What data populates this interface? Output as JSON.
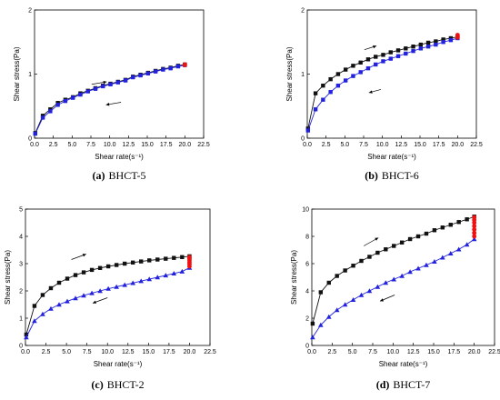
{
  "chart_data": [
    {
      "type": "line",
      "panel": "a",
      "caption_letter": "(a)",
      "caption_text": "BHCT-5",
      "xlabel": "Shear rate(s⁻¹)",
      "ylabel": "Shear stress(Pa)",
      "xlim": [
        0,
        22.5
      ],
      "ylim": [
        0,
        2
      ],
      "x_ticks": [
        0.0,
        2.5,
        5.0,
        7.5,
        10.0,
        12.5,
        15.0,
        17.5,
        20.0,
        22.5
      ],
      "y_ticks": [
        0,
        1,
        2
      ],
      "series": [
        {
          "direction": "up",
          "marker": "square",
          "color": "#111111",
          "x": [
            0.1,
            1.1,
            2.1,
            3.1,
            4.1,
            5.1,
            6.1,
            7.1,
            8.1,
            9.1,
            10.1,
            11.1,
            12.1,
            13.1,
            14.1,
            15.1,
            16.1,
            17.1,
            18.1,
            19.1,
            20.0
          ],
          "y": [
            0.08,
            0.35,
            0.45,
            0.55,
            0.6,
            0.64,
            0.7,
            0.74,
            0.78,
            0.82,
            0.85,
            0.88,
            0.91,
            0.96,
            0.99,
            1.02,
            1.05,
            1.08,
            1.1,
            1.13,
            1.15
          ]
        },
        {
          "direction": "down",
          "marker": "square",
          "color": "#2222dd",
          "x": [
            0.1,
            1.1,
            2.1,
            3.1,
            4.1,
            5.1,
            6.1,
            7.1,
            8.1,
            9.1,
            10.1,
            11.1,
            12.1,
            13.1,
            14.1,
            15.1,
            16.1,
            17.1,
            18.1,
            19.1,
            20.0
          ],
          "y": [
            0.07,
            0.32,
            0.42,
            0.52,
            0.58,
            0.63,
            0.68,
            0.73,
            0.77,
            0.81,
            0.84,
            0.87,
            0.9,
            0.95,
            0.98,
            1.01,
            1.04,
            1.07,
            1.09,
            1.12,
            1.14
          ]
        },
        {
          "direction": "hold",
          "marker": "circle",
          "color": "#ee1111",
          "x": [
            20.0,
            20.0
          ],
          "y": [
            1.14,
            1.15
          ]
        }
      ],
      "arrows": [
        {
          "direction": "up",
          "from": [
            7.6,
            0.84
          ],
          "to": [
            9.6,
            0.88
          ]
        },
        {
          "direction": "down",
          "from": [
            11.5,
            0.56
          ],
          "to": [
            9.5,
            0.52
          ]
        }
      ]
    },
    {
      "type": "line",
      "panel": "b",
      "caption_letter": "(b)",
      "caption_text": "BHCT-6",
      "xlabel": "Shear rate(s⁻¹)",
      "ylabel": "Shear stress(Pa)",
      "xlim": [
        0,
        22.5
      ],
      "ylim": [
        0,
        2
      ],
      "x_ticks": [
        0.0,
        2.5,
        5.0,
        7.5,
        10.0,
        12.5,
        15.0,
        17.5,
        20.0,
        22.5
      ],
      "y_ticks": [
        0,
        1,
        2
      ],
      "series": [
        {
          "direction": "up",
          "marker": "square",
          "color": "#111111",
          "x": [
            0.1,
            1.1,
            2.1,
            3.1,
            4.1,
            5.1,
            6.1,
            7.1,
            8.1,
            9.1,
            10.1,
            11.1,
            12.1,
            13.1,
            14.1,
            15.1,
            16.1,
            17.1,
            18.1,
            19.1,
            20.0
          ],
          "y": [
            0.15,
            0.7,
            0.82,
            0.92,
            1.0,
            1.07,
            1.13,
            1.18,
            1.23,
            1.27,
            1.3,
            1.34,
            1.37,
            1.4,
            1.43,
            1.46,
            1.49,
            1.51,
            1.54,
            1.56,
            1.58
          ]
        },
        {
          "direction": "down",
          "marker": "square",
          "color": "#2222dd",
          "x": [
            0.1,
            1.1,
            2.1,
            3.1,
            4.1,
            5.1,
            6.1,
            7.1,
            8.1,
            9.1,
            10.1,
            11.1,
            12.1,
            13.1,
            14.1,
            15.1,
            16.1,
            17.1,
            18.1,
            19.1,
            20.0
          ],
          "y": [
            0.12,
            0.45,
            0.6,
            0.72,
            0.82,
            0.9,
            0.97,
            1.03,
            1.09,
            1.15,
            1.2,
            1.24,
            1.28,
            1.32,
            1.36,
            1.4,
            1.43,
            1.46,
            1.5,
            1.53,
            1.56
          ]
        },
        {
          "direction": "hold",
          "marker": "circle",
          "color": "#ee1111",
          "x": [
            20.0,
            20.0,
            20.0
          ],
          "y": [
            1.57,
            1.59,
            1.61
          ]
        }
      ],
      "arrows": [
        {
          "direction": "up",
          "from": [
            7.6,
            1.38
          ],
          "to": [
            9.2,
            1.44
          ]
        },
        {
          "direction": "down",
          "from": [
            9.8,
            0.76
          ],
          "to": [
            8.2,
            0.71
          ]
        }
      ]
    },
    {
      "type": "line",
      "panel": "c",
      "caption_letter": "(c)",
      "caption_text": "BHCT-2",
      "xlabel": "Shear rate(s⁻¹)",
      "ylabel": "Shear stress(Pa)",
      "xlim": [
        0,
        22.5
      ],
      "ylim": [
        0,
        5
      ],
      "x_ticks": [
        0.0,
        2.5,
        5.0,
        7.5,
        10.0,
        12.5,
        15.0,
        17.5,
        20.0,
        22.5
      ],
      "y_ticks": [
        0,
        1,
        2,
        3,
        4,
        5
      ],
      "series": [
        {
          "direction": "up",
          "marker": "square",
          "color": "#111111",
          "x": [
            0.1,
            1.1,
            2.1,
            3.1,
            4.1,
            5.1,
            6.1,
            7.1,
            8.1,
            9.1,
            10.1,
            11.1,
            12.1,
            13.1,
            14.1,
            15.1,
            16.1,
            17.1,
            18.1,
            19.1,
            20.0
          ],
          "y": [
            0.4,
            1.45,
            1.85,
            2.1,
            2.3,
            2.45,
            2.58,
            2.68,
            2.77,
            2.84,
            2.9,
            2.95,
            3.0,
            3.04,
            3.08,
            3.12,
            3.15,
            3.18,
            3.21,
            3.24,
            3.27
          ]
        },
        {
          "direction": "down",
          "marker": "triangle",
          "color": "#2222dd",
          "x": [
            0.1,
            1.1,
            2.1,
            3.1,
            4.1,
            5.1,
            6.1,
            7.1,
            8.1,
            9.1,
            10.1,
            11.1,
            12.1,
            13.1,
            14.1,
            15.1,
            16.1,
            17.1,
            18.1,
            19.1,
            20.0
          ],
          "y": [
            0.3,
            0.9,
            1.15,
            1.35,
            1.5,
            1.62,
            1.73,
            1.83,
            1.92,
            2.0,
            2.08,
            2.15,
            2.22,
            2.29,
            2.36,
            2.43,
            2.5,
            2.57,
            2.64,
            2.71,
            2.85
          ]
        },
        {
          "direction": "hold",
          "marker": "circle",
          "color": "#ee1111",
          "x": [
            20.0,
            20.0,
            20.0,
            20.0,
            20.0,
            20.0
          ],
          "y": [
            2.9,
            2.98,
            3.05,
            3.12,
            3.18,
            3.24
          ]
        }
      ],
      "arrows": [
        {
          "direction": "up",
          "from": [
            5.6,
            3.15
          ],
          "to": [
            7.4,
            3.35
          ]
        },
        {
          "direction": "down",
          "from": [
            10.0,
            1.75
          ],
          "to": [
            8.2,
            1.55
          ]
        }
      ]
    },
    {
      "type": "line",
      "panel": "d",
      "caption_letter": "(d)",
      "caption_text": "BHCT-7",
      "xlabel": "Shear rate(s⁻¹)",
      "ylabel": "Shear stress(Pa)",
      "xlim": [
        0,
        22.5
      ],
      "ylim": [
        0,
        10
      ],
      "x_ticks": [
        0.0,
        2.5,
        5.0,
        7.5,
        10.0,
        12.5,
        15.0,
        17.5,
        20.0,
        22.5
      ],
      "y_ticks": [
        0,
        2,
        4,
        6,
        8,
        10
      ],
      "series": [
        {
          "direction": "up",
          "marker": "square",
          "color": "#111111",
          "x": [
            0.1,
            1.1,
            2.1,
            3.1,
            4.1,
            5.1,
            6.1,
            7.1,
            8.1,
            9.1,
            10.1,
            11.1,
            12.1,
            13.1,
            14.1,
            15.1,
            16.1,
            17.1,
            18.1,
            19.1,
            20.0
          ],
          "y": [
            1.6,
            3.9,
            4.6,
            5.1,
            5.5,
            5.85,
            6.2,
            6.5,
            6.8,
            7.05,
            7.3,
            7.55,
            7.8,
            8.0,
            8.2,
            8.45,
            8.65,
            8.85,
            9.05,
            9.25,
            9.45
          ]
        },
        {
          "direction": "down",
          "marker": "triangle",
          "color": "#2222dd",
          "x": [
            0.1,
            1.1,
            2.1,
            3.1,
            4.1,
            5.1,
            6.1,
            7.1,
            8.1,
            9.1,
            10.1,
            11.1,
            12.1,
            13.1,
            14.1,
            15.1,
            16.1,
            17.1,
            18.1,
            19.1,
            20.0
          ],
          "y": [
            0.6,
            1.5,
            2.1,
            2.6,
            3.0,
            3.35,
            3.7,
            4.0,
            4.3,
            4.6,
            4.85,
            5.1,
            5.4,
            5.65,
            5.9,
            6.15,
            6.45,
            6.75,
            7.05,
            7.4,
            7.8
          ]
        },
        {
          "direction": "hold",
          "marker": "circle",
          "color": "#ee1111",
          "x": [
            20.0,
            20.0,
            20.0,
            20.0,
            20.0,
            20.0,
            20.0
          ],
          "y": [
            8.0,
            8.25,
            8.5,
            8.75,
            9.0,
            9.2,
            9.4
          ]
        }
      ],
      "arrows": [
        {
          "direction": "up",
          "from": [
            6.4,
            7.3
          ],
          "to": [
            8.2,
            7.9
          ]
        },
        {
          "direction": "down",
          "from": [
            10.2,
            3.7
          ],
          "to": [
            8.4,
            3.25
          ]
        }
      ]
    }
  ]
}
